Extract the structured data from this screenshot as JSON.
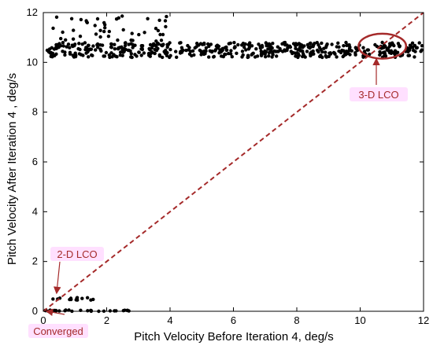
{
  "chart_data": {
    "type": "scatter",
    "xlabel": "Pitch Velocity Before Iteration 4, deg/s",
    "ylabel": "Pitch Velocity After Iteration 4 , deg/s",
    "xlim": [
      0,
      12
    ],
    "ylim": [
      0,
      12
    ],
    "xticks": [
      "0",
      "2",
      "4",
      "6",
      "8",
      "10",
      "12"
    ],
    "yticks": [
      "0",
      "2",
      "4",
      "6",
      "8",
      "10",
      "12"
    ],
    "grid": false,
    "reference_line": {
      "x": [
        0,
        12
      ],
      "y": [
        0,
        12
      ],
      "style": "dashed",
      "color": "#a52a2a"
    },
    "clusters": [
      {
        "x_range": [
          0.1,
          12.0
        ],
        "y_range": [
          10.2,
          10.8
        ],
        "count": 520
      },
      {
        "x_range": [
          0.3,
          4.0
        ],
        "y_range": [
          10.8,
          11.9
        ],
        "count": 45
      },
      {
        "x_range": [
          0.0,
          2.8
        ],
        "y_range": [
          0.0,
          0.05
        ],
        "count": 30
      },
      {
        "x_range": [
          0.0,
          1.7
        ],
        "y_range": [
          0.45,
          0.55
        ],
        "count": 14
      }
    ],
    "annotations": [
      {
        "text": "3-D LCO",
        "color": "#a52a2a",
        "ellipse_center": [
          10.7,
          10.65
        ],
        "ellipse_radius": [
          0.75,
          0.5
        ]
      },
      {
        "text": "2-D LCO",
        "color": "#a52a2a",
        "points_to": [
          0.6,
          0.5
        ]
      },
      {
        "text": "Converged",
        "color": "#a52a2a",
        "points_to": [
          0.05,
          0.0
        ]
      }
    ],
    "colors": {
      "points": "#000000",
      "annotation": "#a52a2a",
      "highlight": "#ff00ff"
    }
  }
}
